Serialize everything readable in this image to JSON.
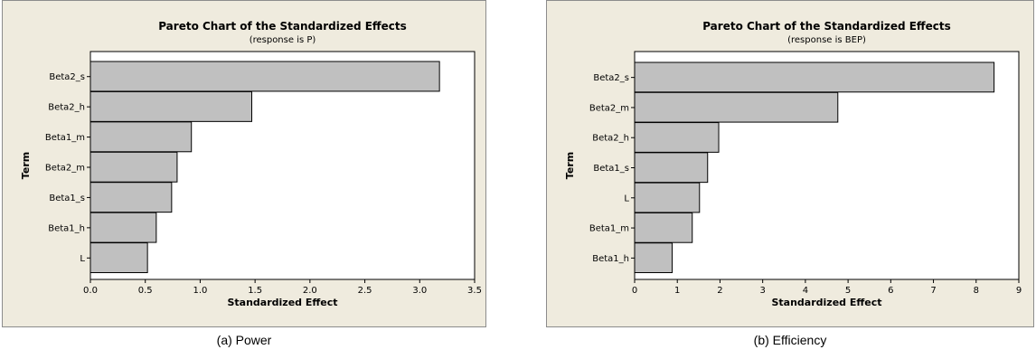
{
  "chart_data": [
    {
      "type": "bar",
      "orientation": "horizontal",
      "title": "Pareto Chart of the Standardized Effects",
      "subtitle": "(response is P)",
      "xlabel": "Standardized Effect",
      "ylabel": "Term",
      "categories": [
        "Beta2_s",
        "Beta2_h",
        "Beta1_m",
        "Beta2_m",
        "Beta1_s",
        "Beta1_h",
        "L"
      ],
      "values": [
        3.18,
        1.47,
        0.92,
        0.79,
        0.74,
        0.6,
        0.52
      ],
      "xlim": [
        0,
        3.5
      ],
      "xticks": [
        "0.0",
        "0.5",
        "1.0",
        "1.5",
        "2.0",
        "2.5",
        "3.0",
        "3.5"
      ],
      "caption": "(a) Power",
      "colors": {
        "bar": "#c0c0c0",
        "frame_bg": "#efebde",
        "plot_bg": "#ffffff"
      }
    },
    {
      "type": "bar",
      "orientation": "horizontal",
      "title": "Pareto Chart of the Standardized Effects",
      "subtitle": "(response is BEP)",
      "xlabel": "Standardized Effect",
      "ylabel": "Term",
      "categories": [
        "Beta2_s",
        "Beta2_m",
        "Beta2_h",
        "Beta1_s",
        "L",
        "Beta1_m",
        "Beta1_h"
      ],
      "values": [
        8.42,
        4.76,
        1.97,
        1.71,
        1.52,
        1.35,
        0.88
      ],
      "xlim": [
        0,
        9
      ],
      "xticks": [
        "0",
        "1",
        "2",
        "3",
        "4",
        "5",
        "6",
        "7",
        "8",
        "9"
      ],
      "caption": "(b) Efficiency",
      "colors": {
        "bar": "#c0c0c0",
        "frame_bg": "#efebde",
        "plot_bg": "#ffffff"
      }
    }
  ]
}
